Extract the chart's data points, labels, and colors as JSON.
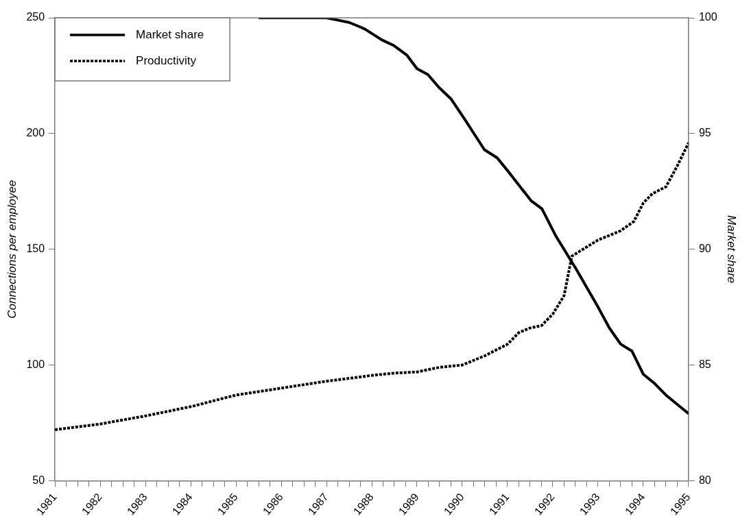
{
  "chart_data": {
    "type": "line",
    "ylabel": "Connections per employee",
    "y2label": "Market share",
    "xlim": [
      1981,
      1995
    ],
    "xticks": [
      1981,
      {
        "value": 1981.25,
        "label": null
      },
      {
        "value": 1981.5,
        "label": null
      },
      {
        "value": 1981.75,
        "label": null
      },
      1982,
      {
        "value": 1982.25,
        "label": null
      },
      {
        "value": 1982.5,
        "label": null
      },
      {
        "value": 1982.75,
        "label": null
      },
      1983,
      {
        "value": 1983.25,
        "label": null
      },
      {
        "value": 1983.5,
        "label": null
      },
      {
        "value": 1983.75,
        "label": null
      },
      1984,
      {
        "value": 1984.25,
        "label": null
      },
      {
        "value": 1984.5,
        "label": null
      },
      {
        "value": 1984.75,
        "label": null
      },
      1985,
      {
        "value": 1985.25,
        "label": null
      },
      {
        "value": 1985.5,
        "label": null
      },
      {
        "value": 1985.75,
        "label": null
      },
      1986,
      {
        "value": 1986.25,
        "label": null
      },
      {
        "value": 1986.5,
        "label": null
      },
      {
        "value": 1986.75,
        "label": null
      },
      1987,
      {
        "value": 1987.25,
        "label": null
      },
      {
        "value": 1987.5,
        "label": null
      },
      {
        "value": 1987.75,
        "label": null
      },
      1988,
      {
        "value": 1988.25,
        "label": null
      },
      {
        "value": 1988.5,
        "label": null
      },
      {
        "value": 1988.75,
        "label": null
      },
      1989,
      {
        "value": 1989.25,
        "label": null
      },
      {
        "value": 1989.5,
        "label": null
      },
      {
        "value": 1989.75,
        "label": null
      },
      1990,
      {
        "value": 1990.25,
        "label": null
      },
      {
        "value": 1990.5,
        "label": null
      },
      {
        "value": 1990.75,
        "label": null
      },
      1991,
      {
        "value": 1991.25,
        "label": null
      },
      {
        "value": 1991.5,
        "label": null
      },
      {
        "value": 1991.75,
        "label": null
      },
      1992,
      {
        "value": 1992.25,
        "label": null
      },
      {
        "value": 1992.5,
        "label": null
      },
      {
        "value": 1992.75,
        "label": null
      },
      1993,
      {
        "value": 1993.25,
        "label": null
      },
      {
        "value": 1993.5,
        "label": null
      },
      {
        "value": 1993.75,
        "label": null
      },
      1994,
      {
        "value": 1994.25,
        "label": null
      },
      {
        "value": 1994.5,
        "label": null
      },
      {
        "value": 1994.75,
        "label": null
      },
      1995
    ],
    "ylim": [
      50,
      250
    ],
    "yticks": [
      50,
      100,
      150,
      200,
      250
    ],
    "y2lim": [
      80,
      100
    ],
    "y2ticks": [
      80,
      85,
      90,
      95,
      100
    ],
    "grid": false,
    "legend": "top left",
    "marker": "none",
    "series": [
      {
        "name": "Market share",
        "color": "#000000",
        "axis": "y2",
        "line_style": "solid",
        "x": [
          1985.5,
          1986,
          1986.5,
          1987,
          1987.25,
          1987.5,
          1987.75,
          1987.86,
          1988.22,
          1988.49,
          1988.77,
          1989.0,
          1989.24,
          1989.48,
          1989.75,
          1990.06,
          1990.49,
          1990.77,
          1991.0,
          1991.52,
          1991.76,
          1992.06,
          1992.42,
          1992.5,
          1993,
          1993.25,
          1993.5,
          1993.75,
          1994,
          1994.25,
          1994.5,
          1994.75,
          1995
        ],
        "values": [
          100,
          100,
          100,
          100,
          99.9,
          99.8,
          99.6,
          99.5,
          99.05,
          98.8,
          98.4,
          97.8,
          97.55,
          97.0,
          96.5,
          95.6,
          94.3,
          93.95,
          93.4,
          92.1,
          91.75,
          90.6,
          89.45,
          89.2,
          87.5,
          86.6,
          85.9,
          85.6,
          84.6,
          84.2,
          83.7,
          83.3,
          82.9
        ]
      },
      {
        "name": "Productivity",
        "color": "#000000",
        "axis": "y",
        "line_style": "dotted",
        "x": [
          1981,
          1982,
          1983,
          1984,
          1985,
          1986,
          1987,
          1988,
          1988.5,
          1989,
          1989.5,
          1990,
          1990.5,
          1991,
          1991.25,
          1991.5,
          1991.75,
          1992,
          1992.25,
          1992.42,
          1992.5,
          1992.75,
          1993,
          1993.5,
          1993.79,
          1994,
          1994.2,
          1994.5,
          1994.75,
          1995
        ],
        "values": [
          72,
          74.5,
          78,
          82,
          87,
          90,
          93,
          95.5,
          96.5,
          97,
          99,
          100,
          104,
          109,
          114,
          116,
          117,
          122,
          130,
          147,
          148,
          151,
          154,
          158,
          162,
          170,
          174,
          177,
          186,
          196
        ]
      }
    ]
  }
}
